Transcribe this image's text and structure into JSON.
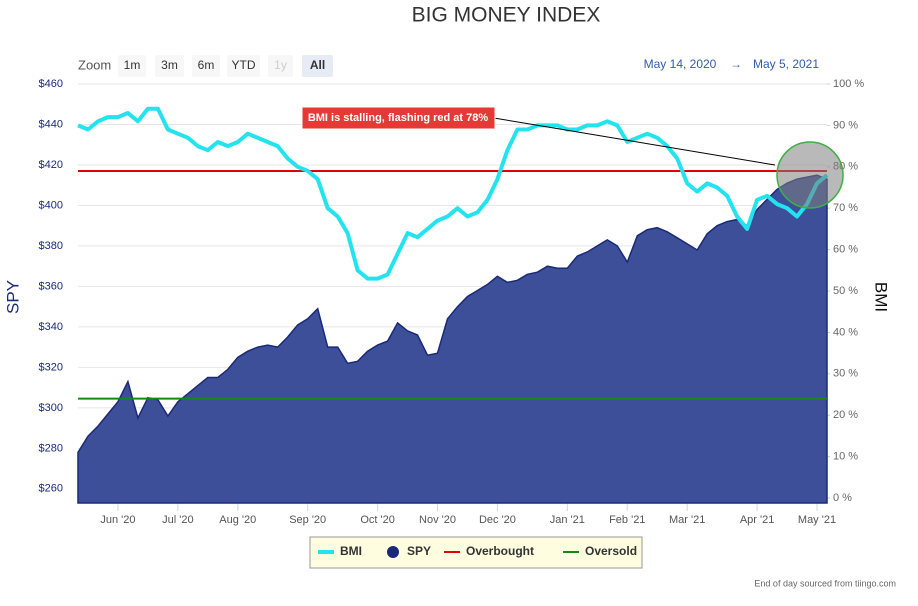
{
  "chart_data": {
    "type": "line",
    "title": "BIG MONEY INDEX",
    "range_selector": {
      "label": "Zoom",
      "buttons": [
        "1m",
        "3m",
        "6m",
        "YTD",
        "1y",
        "All"
      ],
      "selected": "All",
      "disabled": [
        "1y"
      ]
    },
    "date_range": {
      "from": "May 14, 2020",
      "arrow": "→",
      "to": "May 5, 2021"
    },
    "y_label": "SPY",
    "y2_label": "BMI",
    "categories": [
      null,
      null,
      null,
      null,
      "Jun '20",
      null,
      null,
      null,
      null,
      null,
      "Jul '20",
      null,
      null,
      null,
      null,
      null,
      "Aug '20",
      null,
      null,
      null,
      null,
      null,
      null,
      "Sep '20",
      null,
      null,
      null,
      null,
      null,
      null,
      "Oct '20",
      null,
      null,
      null,
      null,
      null,
      "Nov '20",
      null,
      null,
      null,
      null,
      null,
      "Dec '20",
      null,
      null,
      null,
      null,
      null,
      null,
      "Jan '21",
      null,
      null,
      null,
      null,
      null,
      "Feb '21",
      null,
      null,
      null,
      null,
      null,
      "Mar '21",
      null,
      null,
      null,
      null,
      null,
      null,
      "Apr '21",
      null,
      null,
      null,
      null,
      null,
      "May '21",
      null
    ],
    "series": [
      {
        "name": "BMI",
        "color": "#22e3ee",
        "kind": "line",
        "axis": "y2",
        "values": [
          90,
          89,
          91,
          92,
          92,
          93,
          91,
          94,
          94,
          89,
          88,
          87,
          85,
          84,
          86,
          85,
          86,
          88,
          87,
          86,
          85,
          82,
          80,
          79,
          77,
          70,
          68,
          64,
          55,
          53,
          53,
          54,
          59,
          64,
          63,
          65,
          67,
          68,
          70,
          68,
          69,
          72,
          77,
          84,
          89,
          89,
          90,
          90,
          90,
          89,
          89,
          90,
          90,
          91,
          90,
          86,
          87,
          88,
          87,
          85,
          82,
          76,
          74,
          76,
          75,
          73,
          68,
          65,
          72,
          73,
          71,
          70,
          68,
          71,
          76,
          78
        ]
      },
      {
        "name": "SPY",
        "color": "#1a2a78",
        "fill": "#3c4f98",
        "kind": "area",
        "axis": "y",
        "values": [
          278,
          286,
          291,
          297,
          303,
          313,
          295,
          305,
          304,
          296,
          303,
          307,
          311,
          315,
          315,
          319,
          325,
          328,
          330,
          331,
          330,
          335,
          341,
          344,
          349,
          330,
          330,
          322,
          323,
          328,
          331,
          333,
          342,
          338,
          336,
          326,
          327,
          344,
          350,
          355,
          358,
          361,
          365,
          362,
          363,
          366,
          367,
          370,
          369,
          369,
          375,
          377,
          380,
          383,
          380,
          372,
          385,
          388,
          389,
          387,
          384,
          381,
          378,
          386,
          390,
          392,
          393,
          390,
          398,
          403,
          408,
          411,
          413,
          414,
          415,
          413
        ]
      }
    ],
    "plot_lines": [
      {
        "name": "Overbought",
        "color": "#e00000",
        "value": 79,
        "axis": "y2"
      },
      {
        "name": "Oversold",
        "color": "#138a13",
        "value": 24,
        "axis": "y2"
      }
    ],
    "ylim": [
      253,
      460
    ],
    "yticks": [
      {
        "value": 260,
        "label": "$260"
      },
      {
        "value": 280,
        "label": "$280"
      },
      {
        "value": 300,
        "label": "$300"
      },
      {
        "value": 320,
        "label": "$320"
      },
      {
        "value": 340,
        "label": "$340"
      },
      {
        "value": 360,
        "label": "$360"
      },
      {
        "value": 380,
        "label": "$380"
      },
      {
        "value": 400,
        "label": "$400"
      },
      {
        "value": 420,
        "label": "$420"
      },
      {
        "value": 440,
        "label": "$440"
      },
      {
        "value": 460,
        "label": "$460"
      }
    ],
    "y2lim": [
      -1.2,
      100
    ],
    "y2ticks": [
      {
        "value": 0,
        "label": "0 %"
      },
      {
        "value": 10,
        "label": "10 %"
      },
      {
        "value": 20,
        "label": "20 %"
      },
      {
        "value": 30,
        "label": "30 %"
      },
      {
        "value": 40,
        "label": "40 %"
      },
      {
        "value": 50,
        "label": "50 %"
      },
      {
        "value": 60,
        "label": "60 %"
      },
      {
        "value": 70,
        "label": "70 %"
      },
      {
        "value": 80,
        "label": "80 %"
      },
      {
        "value": 90,
        "label": "90 %"
      },
      {
        "value": 100,
        "label": "100 %"
      }
    ],
    "grid": true,
    "legend": "bottom",
    "annotation": {
      "text": "BMI is stalling, flashing red at 78%",
      "color": "#e53935"
    },
    "credits": "End of day sourced from tiingo.com"
  }
}
